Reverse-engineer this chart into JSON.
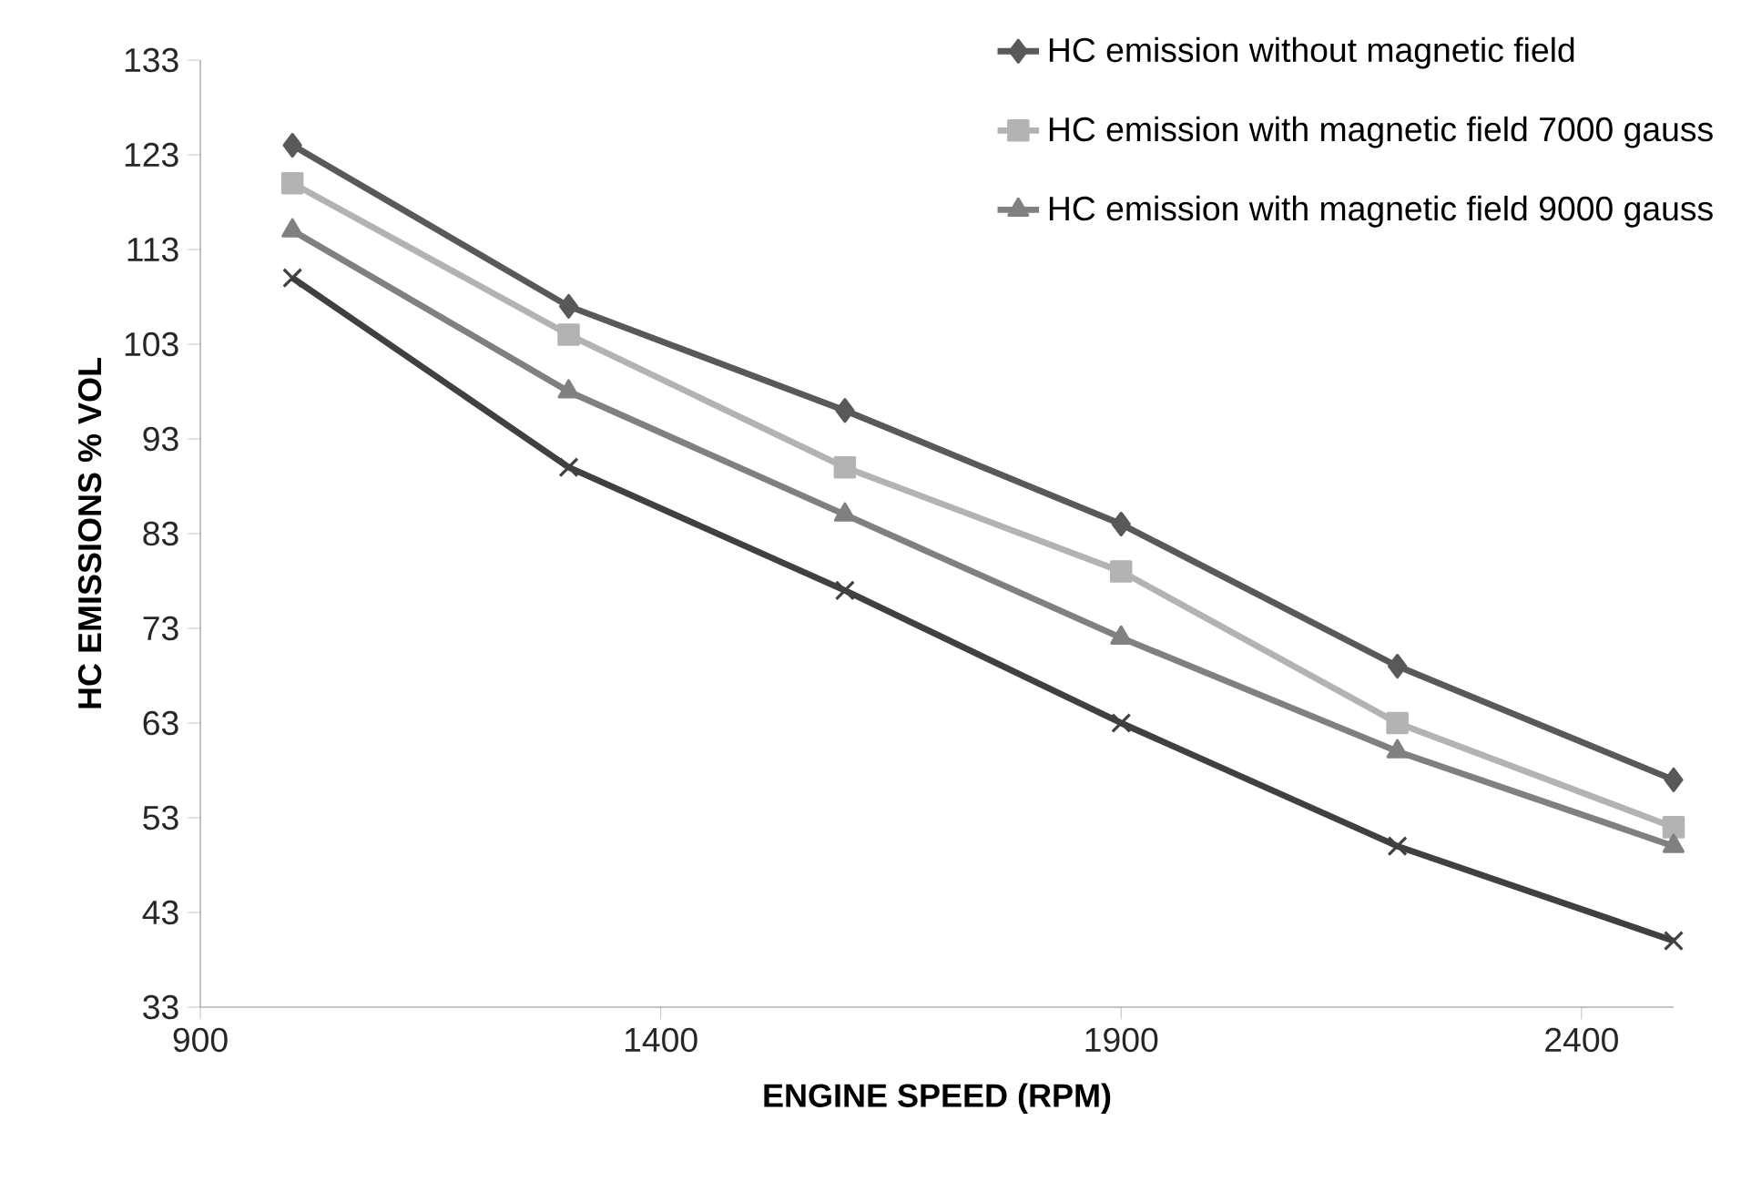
{
  "chart_data": {
    "type": "line",
    "xlabel": "ENGINE SPEED (RPM)",
    "ylabel": "HC EMISSIONS % VOL",
    "x": [
      1000,
      1300,
      1600,
      1900,
      2200,
      2500
    ],
    "series": [
      {
        "name": "HC emission without magnetic field",
        "color": "#595959",
        "marker": "diamond",
        "values": [
          124,
          107,
          96,
          84,
          69,
          57
        ]
      },
      {
        "name": "HC emission with magnetic field 7000 gauss",
        "color": "#b3b3b3",
        "marker": "square",
        "values": [
          120,
          104,
          90,
          79,
          63,
          52
        ]
      },
      {
        "name": "HC emission with magnetic field 9000 gauss",
        "color": "#808080",
        "marker": "triangle",
        "values": [
          115,
          98,
          85,
          72,
          60,
          50
        ]
      },
      {
        "color": "#404040",
        "marker": "cross",
        "values": [
          110,
          90,
          77,
          63,
          50,
          40
        ]
      }
    ],
    "xlim": [
      900,
      2500
    ],
    "xticks": [
      900,
      1400,
      1900,
      2400
    ],
    "ylim": [
      33,
      133
    ],
    "yticks": [
      33,
      43,
      53,
      63,
      73,
      83,
      93,
      103,
      113,
      123,
      133
    ],
    "grid": false,
    "legend": "top right",
    "line_style": "solid"
  }
}
